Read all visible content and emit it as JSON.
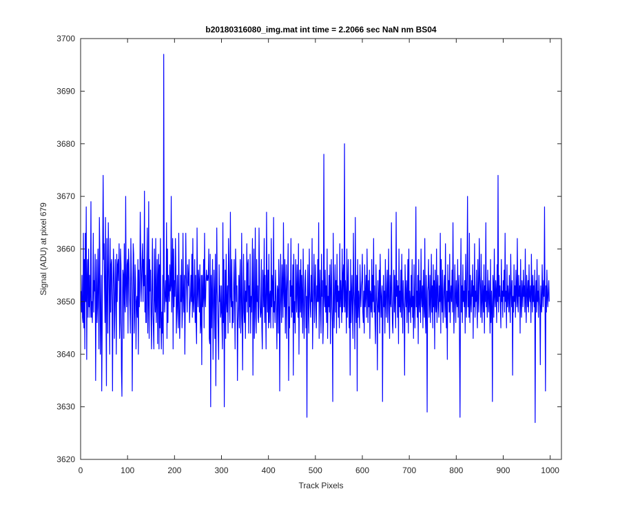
{
  "chart_data": {
    "type": "line",
    "title": "b20180316080_img.mat int time = 2.2066 sec  NaN nm BS04",
    "xlabel": "Track Pixels",
    "ylabel": "Signal (ADU) at pixel 679",
    "xlim": [
      0,
      1024
    ],
    "ylim": [
      3620,
      3700
    ],
    "xticks": [
      0,
      100,
      200,
      300,
      400,
      500,
      600,
      700,
      800,
      900,
      1000
    ],
    "yticks": [
      3620,
      3630,
      3640,
      3650,
      3660,
      3670,
      3680,
      3690,
      3700
    ],
    "grid": false,
    "box": true,
    "series": [
      {
        "color": "#0000ff",
        "x_start": 1,
        "x_step": 1,
        "y": [
          3652,
          3648,
          3655,
          3647,
          3646,
          3663,
          3645,
          3658,
          3641,
          3663,
          3650,
          3668,
          3639,
          3654,
          3658,
          3647,
          3660,
          3649,
          3655,
          3647,
          3651,
          3669,
          3647,
          3650,
          3646,
          3653,
          3663,
          3648,
          3654,
          3652,
          3659,
          3635,
          3650,
          3658,
          3646,
          3649,
          3660,
          3652,
          3641,
          3666,
          3659,
          3640,
          3648,
          3655,
          3633,
          3645,
          3660,
          3674,
          3658,
          3661,
          3652,
          3646,
          3666,
          3648,
          3634,
          3662,
          3654,
          3644,
          3665,
          3658,
          3651,
          3640,
          3662,
          3648,
          3657,
          3658,
          3649,
          3633,
          3652,
          3660,
          3655,
          3643,
          3648,
          3658,
          3653,
          3640,
          3659,
          3650,
          3657,
          3658,
          3654,
          3661,
          3643,
          3646,
          3660,
          3657,
          3637,
          3632,
          3649,
          3656,
          3655,
          3643,
          3661,
          3650,
          3648,
          3670,
          3653,
          3649,
          3657,
          3658,
          3644,
          3660,
          3657,
          3652,
          3649,
          3644,
          3662,
          3656,
          3651,
          3633,
          3647,
          3661,
          3659,
          3644,
          3648,
          3657,
          3654,
          3641,
          3650,
          3651,
          3647,
          3658,
          3640,
          3656,
          3649,
          3652,
          3667,
          3659,
          3650,
          3654,
          3658,
          3661,
          3650,
          3658,
          3653,
          3671,
          3648,
          3655,
          3646,
          3646,
          3657,
          3664,
          3644,
          3650,
          3669,
          3643,
          3658,
          3652,
          3656,
          3647,
          3641,
          3653,
          3662,
          3648,
          3645,
          3641,
          3660,
          3651,
          3648,
          3662,
          3646,
          3650,
          3658,
          3642,
          3655,
          3659,
          3641,
          3657,
          3645,
          3662,
          3647,
          3641,
          3648,
          3644,
          3655,
          3640,
          3697,
          3655,
          3648,
          3651,
          3654,
          3650,
          3665,
          3643,
          3660,
          3646,
          3655,
          3652,
          3650,
          3657,
          3652,
          3653,
          3670,
          3648,
          3653,
          3662,
          3641,
          3660,
          3649,
          3654,
          3651,
          3662,
          3656,
          3644,
          3649,
          3655,
          3648,
          3645,
          3663,
          3650,
          3643,
          3648,
          3655,
          3650,
          3658,
          3645,
          3648,
          3663,
          3651,
          3648,
          3655,
          3640,
          3650,
          3663,
          3655,
          3652,
          3648,
          3657,
          3654,
          3653,
          3658,
          3646,
          3649,
          3651,
          3655,
          3650,
          3659,
          3647,
          3662,
          3650,
          3648,
          3652,
          3658,
          3646,
          3655,
          3646,
          3642,
          3664,
          3652,
          3649,
          3656,
          3654,
          3648,
          3657,
          3644,
          3646,
          3655,
          3638,
          3655,
          3649,
          3651,
          3658,
          3645,
          3663,
          3651,
          3649,
          3654,
          3656,
          3654,
          3655,
          3654,
          3655,
          3660,
          3643,
          3642,
          3659,
          3630,
          3655,
          3645,
          3652,
          3658,
          3639,
          3647,
          3656,
          3651,
          3643,
          3659,
          3634,
          3648,
          3664,
          3652,
          3649,
          3644,
          3639,
          3657,
          3650,
          3653,
          3647,
          3648,
          3653,
          3646,
          3641,
          3665,
          3646,
          3658,
          3630,
          3649,
          3656,
          3643,
          3659,
          3650,
          3648,
          3653,
          3644,
          3662,
          3657,
          3650,
          3646,
          3667,
          3651,
          3649,
          3658,
          3645,
          3650,
          3646,
          3653,
          3658,
          3650,
          3641,
          3660,
          3656,
          3650,
          3653,
          3635,
          3646,
          3649,
          3655,
          3645,
          3654,
          3658,
          3644,
          3647,
          3663,
          3650,
          3637,
          3651,
          3659,
          3648,
          3646,
          3654,
          3643,
          3652,
          3650,
          3661,
          3648,
          3657,
          3658,
          3644,
          3653,
          3649,
          3659,
          3644,
          3651,
          3648,
          3654,
          3662,
          3636,
          3651,
          3660,
          3643,
          3647,
          3664,
          3649,
          3644,
          3658,
          3650,
          3653,
          3647,
          3646,
          3664,
          3655,
          3649,
          3647,
          3648,
          3658,
          3645,
          3641,
          3656,
          3653,
          3649,
          3662,
          3646,
          3655,
          3649,
          3641,
          3667,
          3652,
          3648,
          3656,
          3645,
          3659,
          3646,
          3651,
          3652,
          3645,
          3662,
          3649,
          3655,
          3653,
          3645,
          3666,
          3648,
          3650,
          3646,
          3656,
          3652,
          3648,
          3641,
          3653,
          3652,
          3644,
          3658,
          3654,
          3633,
          3648,
          3659,
          3650,
          3646,
          3657,
          3653,
          3647,
          3665,
          3652,
          3649,
          3658,
          3644,
          3651,
          3657,
          3643,
          3652,
          3655,
          3661,
          3635,
          3649,
          3645,
          3654,
          3651,
          3662,
          3647,
          3653,
          3648,
          3657,
          3636,
          3659,
          3646,
          3650,
          3644,
          3658,
          3652,
          3648,
          3657,
          3652,
          3647,
          3661,
          3640,
          3652,
          3656,
          3648,
          3658,
          3647,
          3655,
          3651,
          3644,
          3660,
          3652,
          3643,
          3649,
          3654,
          3656,
          3645,
          3651,
          3628,
          3652,
          3657,
          3648,
          3644,
          3660,
          3652,
          3649,
          3647,
          3655,
          3650,
          3662,
          3641,
          3648,
          3653,
          3659,
          3646,
          3652,
          3657,
          3649,
          3645,
          3653,
          3650,
          3658,
          3650,
          3665,
          3643,
          3652,
          3656,
          3648,
          3644,
          3659,
          3651,
          3654,
          3642,
          3646,
          3678,
          3651,
          3649,
          3656,
          3648,
          3653,
          3646,
          3660,
          3643,
          3651,
          3649,
          3655,
          3648,
          3657,
          3642,
          3652,
          3658,
          3649,
          3646,
          3631,
          3663,
          3650,
          3645,
          3653,
          3657,
          3648,
          3654,
          3644,
          3659,
          3650,
          3653,
          3647,
          3652,
          3645,
          3661,
          3649,
          3654,
          3651,
          3646,
          3660,
          3648,
          3655,
          3657,
          3649,
          3680,
          3648,
          3654,
          3651,
          3644,
          3660,
          3647,
          3653,
          3658,
          3649,
          3645,
          3652,
          3636,
          3658,
          3646,
          3651,
          3655,
          3648,
          3643,
          3663,
          3652,
          3649,
          3641,
          3666,
          3650,
          3646,
          3655,
          3633,
          3658,
          3647,
          3652,
          3650,
          3645,
          3657,
          3652,
          3649,
          3653,
          3654,
          3659,
          3648,
          3646,
          3652,
          3644,
          3657,
          3649,
          3651,
          3655,
          3647,
          3660,
          3652,
          3646,
          3654,
          3649,
          3656,
          3643,
          3652,
          3651,
          3648,
          3658,
          3647,
          3655,
          3650,
          3662,
          3648,
          3653,
          3646,
          3642,
          3657,
          3651,
          3649,
          3637,
          3654,
          3650,
          3648,
          3656,
          3644,
          3659,
          3652,
          3647,
          3651,
          3653,
          3631,
          3648,
          3655,
          3649,
          3652,
          3644,
          3658,
          3650,
          3647,
          3653,
          3656,
          3646,
          3651,
          3660,
          3648,
          3643,
          3655,
          3650,
          3649,
          3665,
          3652,
          3646,
          3644,
          3651,
          3656,
          3648,
          3655,
          3650,
          3645,
          3667,
          3651,
          3654,
          3647,
          3653,
          3642,
          3660,
          3649,
          3652,
          3648,
          3656,
          3647,
          3659,
          3651,
          3644,
          3654,
          3650,
          3648,
          3636,
          3657,
          3652,
          3649,
          3654,
          3646,
          3651,
          3658,
          3644,
          3660,
          3648,
          3652,
          3650,
          3646,
          3655,
          3649,
          3658,
          3647,
          3651,
          3643,
          3657,
          3650,
          3645,
          3653,
          3668,
          3649,
          3652,
          3647,
          3655,
          3642,
          3658,
          3650,
          3648,
          3654,
          3646,
          3660,
          3651,
          3649,
          3653,
          3645,
          3656,
          3650,
          3647,
          3662,
          3648,
          3644,
          3655,
          3650,
          3629,
          3652,
          3653,
          3658,
          3647,
          3650,
          3655,
          3646,
          3651,
          3659,
          3648,
          3653,
          3645,
          3657,
          3649,
          3654,
          3641,
          3656,
          3650,
          3648,
          3660,
          3646,
          3652,
          3655,
          3649,
          3647,
          3653,
          3650,
          3663,
          3644,
          3658,
          3651,
          3648,
          3656,
          3646,
          3650,
          3653,
          3655,
          3647,
          3661,
          3649,
          3645,
          3652,
          3639,
          3657,
          3650,
          3654,
          3648,
          3659,
          3646,
          3651,
          3653,
          3650,
          3656,
          3648,
          3665,
          3652,
          3644,
          3649,
          3657,
          3651,
          3646,
          3654,
          3650,
          3649,
          3658,
          3647,
          3652,
          3655,
          3641,
          3628,
          3651,
          3662,
          3648,
          3653,
          3646,
          3657,
          3650,
          3652,
          3649,
          3654,
          3644,
          3659,
          3651,
          3647,
          3656,
          3670,
          3649,
          3652,
          3647,
          3663,
          3646,
          3655,
          3650,
          3648,
          3654,
          3651,
          3657,
          3643,
          3653,
          3649,
          3661,
          3647,
          3652,
          3650,
          3656,
          3649,
          3645,
          3658,
          3651,
          3648,
          3662,
          3655,
          3652,
          3647,
          3659,
          3650,
          3646,
          3654,
          3651,
          3648,
          3657,
          3644,
          3653,
          3650,
          3665,
          3649,
          3652,
          3647,
          3656,
          3651,
          3648,
          3654,
          3650,
          3644,
          3658,
          3646,
          3652,
          3649,
          3631,
          3655,
          3653,
          3647,
          3660,
          3651,
          3649,
          3654,
          3652,
          3646,
          3657,
          3650,
          3674,
          3648,
          3655,
          3651,
          3653,
          3649,
          3645,
          3658,
          3650,
          3652,
          3647,
          3654,
          3651,
          3656,
          3648,
          3663,
          3650,
          3652,
          3645,
          3657,
          3649,
          3653,
          3651,
          3648,
          3655,
          3650,
          3646,
          3659,
          3652,
          3649,
          3654,
          3636,
          3651,
          3648,
          3657,
          3650,
          3653,
          3647,
          3656,
          3652,
          3649,
          3662,
          3650,
          3648,
          3655,
          3651,
          3653,
          3644,
          3658,
          3650,
          3647,
          3654,
          3652,
          3649,
          3656,
          3651,
          3653,
          3648,
          3660,
          3650,
          3646,
          3655,
          3652,
          3649,
          3654,
          3648,
          3657,
          3651,
          3650,
          3653,
          3646,
          3659,
          3652,
          3648,
          3655,
          3650,
          3653,
          3649,
          3656,
          3627,
          3651,
          3654,
          3648,
          3658,
          3650,
          3652,
          3647,
          3655,
          3651,
          3649,
          3638,
          3653,
          3650,
          3648,
          3657,
          3652,
          3649,
          3654,
          3651,
          3668,
          3650,
          3633,
          3653,
          3648,
          3656,
          3651,
          3649,
          3652,
          3654,
          3650
        ]
      }
    ]
  }
}
